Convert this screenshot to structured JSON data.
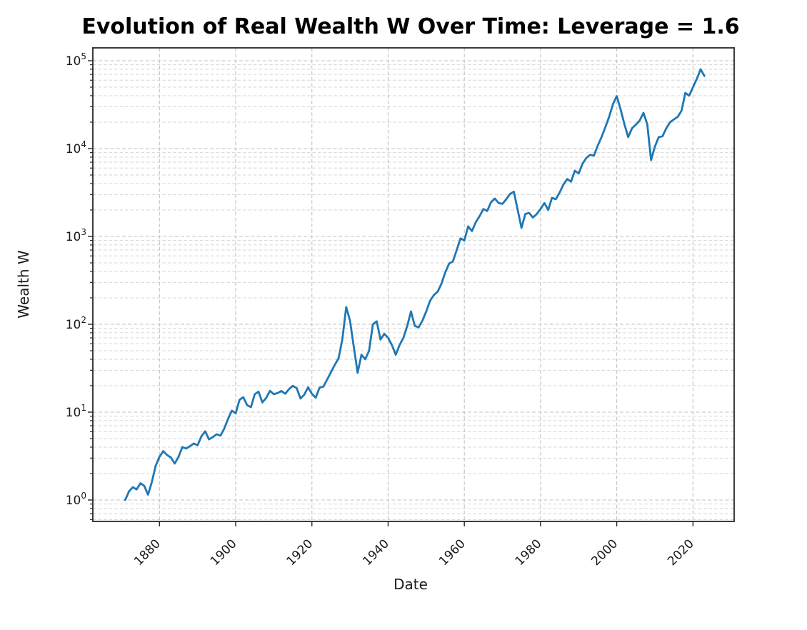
{
  "chart_data": {
    "type": "line",
    "title": "Evolution of Real Wealth W Over Time: Leverage = 1.6",
    "xlabel": "Date",
    "ylabel": "Wealth W",
    "y_scale": "log",
    "grid": "both, dashed",
    "legend": "none",
    "line_color": "#1f77b4",
    "major_grid_color": "#c2c2c2",
    "minor_grid_color": "#d6d6d6",
    "spine_color": "#262626",
    "x_ticks": [
      1880,
      1900,
      1920,
      1940,
      1960,
      1980,
      2000,
      2020
    ],
    "y_tick_exponents": [
      0,
      1,
      2,
      3,
      4,
      5
    ],
    "xlim": [
      1862.6,
      2030.9
    ],
    "ylim": [
      0.57,
      140000
    ],
    "series": [
      {
        "name": "Real Wealth W",
        "x": [
          1871,
          1872,
          1873,
          1874,
          1875,
          1876,
          1877,
          1878,
          1879,
          1880,
          1881,
          1882,
          1883,
          1884,
          1885,
          1886,
          1887,
          1888,
          1889,
          1890,
          1891,
          1892,
          1893,
          1894,
          1895,
          1896,
          1897,
          1898,
          1899,
          1900,
          1901,
          1902,
          1903,
          1904,
          1905,
          1906,
          1907,
          1908,
          1909,
          1910,
          1911,
          1912,
          1913,
          1914,
          1915,
          1916,
          1917,
          1918,
          1919,
          1920,
          1921,
          1922,
          1923,
          1924,
          1925,
          1926,
          1927,
          1928,
          1929,
          1930,
          1931,
          1932,
          1933,
          1934,
          1935,
          1936,
          1937,
          1938,
          1939,
          1940,
          1941,
          1942,
          1943,
          1944,
          1945,
          1946,
          1947,
          1948,
          1949,
          1950,
          1951,
          1952,
          1953,
          1954,
          1955,
          1956,
          1957,
          1958,
          1959,
          1960,
          1961,
          1962,
          1963,
          1964,
          1965,
          1966,
          1967,
          1968,
          1969,
          1970,
          1971,
          1972,
          1973,
          1974,
          1975,
          1976,
          1977,
          1978,
          1979,
          1980,
          1981,
          1982,
          1983,
          1984,
          1985,
          1986,
          1987,
          1988,
          1989,
          1990,
          1991,
          1992,
          1993,
          1994,
          1995,
          1996,
          1997,
          1998,
          1999,
          2000,
          2001,
          2002,
          2003,
          2004,
          2005,
          2006,
          2007,
          2008,
          2009,
          2010,
          2011,
          2012,
          2013,
          2014,
          2015,
          2016,
          2017,
          2018,
          2019,
          2020,
          2021,
          2022,
          2023
        ],
        "y": [
          1.0,
          1.25,
          1.4,
          1.32,
          1.55,
          1.45,
          1.15,
          1.6,
          2.45,
          3.1,
          3.6,
          3.25,
          3.05,
          2.6,
          3.1,
          4.0,
          3.85,
          4.1,
          4.4,
          4.2,
          5.3,
          6.05,
          4.9,
          5.2,
          5.6,
          5.4,
          6.5,
          8.4,
          10.4,
          9.7,
          13.8,
          14.8,
          12.0,
          11.4,
          16.0,
          17.1,
          12.9,
          14.5,
          17.5,
          16.0,
          16.5,
          17.4,
          16.2,
          18.3,
          19.9,
          18.8,
          14.3,
          15.8,
          19.2,
          16.2,
          14.6,
          19.0,
          19.5,
          23.5,
          28.5,
          34.5,
          41.0,
          68.0,
          157,
          110,
          55,
          28,
          45,
          40,
          50,
          100,
          108,
          67,
          78,
          70,
          58,
          45,
          58,
          70,
          95,
          140,
          96,
          92,
          110,
          140,
          185,
          215,
          235,
          290,
          390,
          490,
          520,
          700,
          950,
          900,
          1300,
          1150,
          1450,
          1700,
          2050,
          1950,
          2450,
          2700,
          2400,
          2350,
          2650,
          3050,
          3230,
          2000,
          1250,
          1800,
          1850,
          1640,
          1800,
          2050,
          2400,
          2000,
          2750,
          2650,
          3150,
          3900,
          4500,
          4200,
          5600,
          5200,
          6700,
          7800,
          8500,
          8300,
          10800,
          13500,
          17500,
          23000,
          32000,
          39500,
          28000,
          19000,
          13500,
          17000,
          18700,
          20800,
          25500,
          19000,
          7400,
          10500,
          13500,
          13800,
          17000,
          20000,
          21500,
          23000,
          27000,
          43000,
          40000,
          50000,
          62000,
          80000,
          67000
        ]
      }
    ]
  }
}
